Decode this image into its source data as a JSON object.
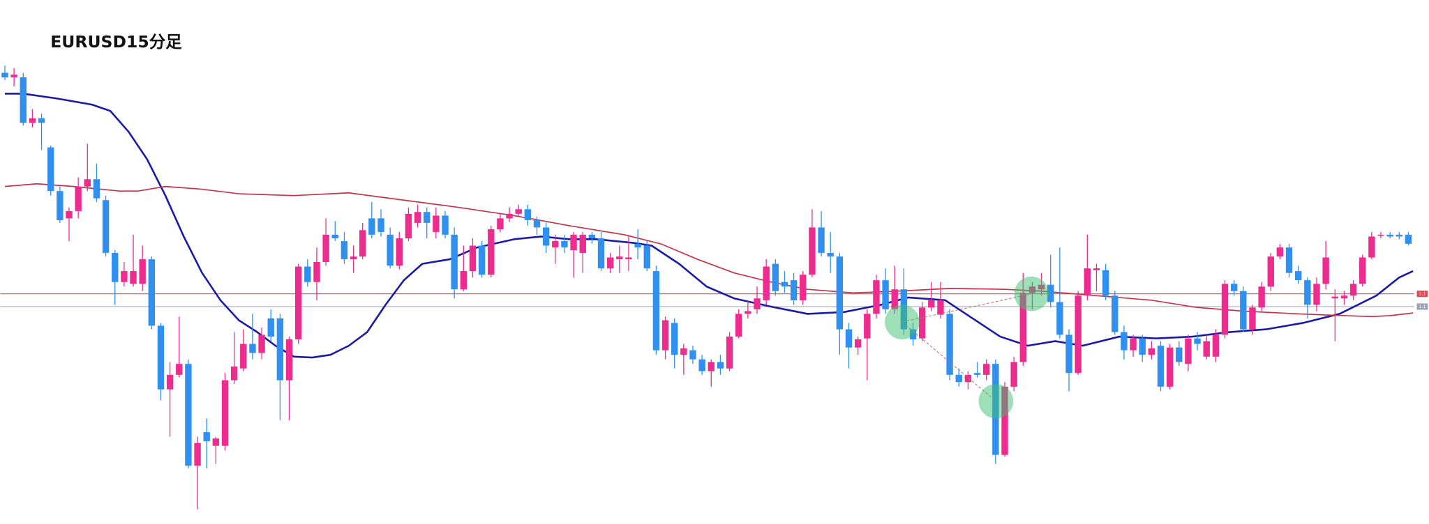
{
  "chart_data": {
    "type": "candlestick",
    "title": "EURUSD15分足",
    "up_color": "#ee2b8e",
    "down_color": "#2f90f0",
    "ylim": [
      35,
      535
    ],
    "candles": [
      [
        520,
        528,
        512,
        515
      ],
      [
        515,
        525,
        505,
        518
      ],
      [
        515,
        520,
        462,
        465
      ],
      [
        465,
        480,
        460,
        470
      ],
      [
        470,
        475,
        435,
        465
      ],
      [
        438,
        440,
        385,
        390
      ],
      [
        390,
        395,
        355,
        358
      ],
      [
        360,
        372,
        335,
        368
      ],
      [
        368,
        405,
        360,
        395
      ],
      [
        395,
        442,
        390,
        403
      ],
      [
        403,
        420,
        378,
        382
      ],
      [
        380,
        385,
        318,
        322
      ],
      [
        322,
        325,
        265,
        290
      ],
      [
        290,
        312,
        285,
        302
      ],
      [
        288,
        342,
        285,
        302
      ],
      [
        288,
        330,
        280,
        315
      ],
      [
        315,
        318,
        238,
        242
      ],
      [
        242,
        245,
        160,
        172
      ],
      [
        172,
        202,
        120,
        188
      ],
      [
        188,
        252,
        185,
        200
      ],
      [
        200,
        205,
        85,
        88
      ],
      [
        88,
        120,
        40,
        113
      ],
      [
        125,
        140,
        85,
        115
      ],
      [
        110,
        120,
        90,
        118
      ],
      [
        110,
        190,
        105,
        182
      ],
      [
        182,
        235,
        178,
        197
      ],
      [
        195,
        238,
        192,
        222
      ],
      [
        222,
        255,
        205,
        212
      ],
      [
        212,
        240,
        205,
        232
      ],
      [
        250,
        260,
        225,
        230
      ],
      [
        250,
        255,
        138,
        182
      ],
      [
        182,
        230,
        138,
        227
      ],
      [
        227,
        310,
        222,
        307
      ],
      [
        307,
        315,
        285,
        290
      ],
      [
        290,
        328,
        270,
        312
      ],
      [
        312,
        360,
        308,
        342
      ],
      [
        342,
        357,
        335,
        338
      ],
      [
        335,
        345,
        310,
        315
      ],
      [
        315,
        330,
        300,
        318
      ],
      [
        318,
        355,
        315,
        347
      ],
      [
        360,
        378,
        338,
        342
      ],
      [
        360,
        370,
        340,
        345
      ],
      [
        342,
        350,
        305,
        308
      ],
      [
        308,
        345,
        304,
        338
      ],
      [
        338,
        372,
        335,
        365
      ],
      [
        355,
        375,
        350,
        367
      ],
      [
        367,
        372,
        338,
        355
      ],
      [
        345,
        372,
        338,
        363
      ],
      [
        363,
        368,
        338,
        342
      ],
      [
        342,
        350,
        272,
        282
      ],
      [
        282,
        330,
        280,
        302
      ],
      [
        302,
        338,
        295,
        330
      ],
      [
        330,
        335,
        295,
        298
      ],
      [
        298,
        352,
        295,
        348
      ],
      [
        348,
        365,
        345,
        360
      ],
      [
        360,
        372,
        356,
        365
      ],
      [
        365,
        375,
        362,
        370
      ],
      [
        370,
        375,
        352,
        358
      ],
      [
        358,
        362,
        342,
        350
      ],
      [
        350,
        355,
        322,
        330
      ],
      [
        328,
        342,
        310,
        335
      ],
      [
        335,
        342,
        322,
        328
      ],
      [
        325,
        345,
        295,
        342
      ],
      [
        322,
        345,
        300,
        342
      ],
      [
        342,
        345,
        332,
        338
      ],
      [
        338,
        345,
        302,
        305
      ],
      [
        305,
        322,
        300,
        317
      ],
      [
        315,
        330,
        300,
        318
      ],
      [
        315,
        342,
        302,
        317
      ],
      [
        332,
        348,
        315,
        328
      ],
      [
        330,
        335,
        302,
        305
      ],
      [
        302,
        308,
        210,
        215
      ],
      [
        215,
        252,
        205,
        248
      ],
      [
        245,
        250,
        195,
        210
      ],
      [
        210,
        222,
        188,
        217
      ],
      [
        215,
        220,
        200,
        205
      ],
      [
        205,
        210,
        188,
        192
      ],
      [
        192,
        205,
        175,
        202
      ],
      [
        202,
        210,
        188,
        195
      ],
      [
        195,
        235,
        192,
        230
      ],
      [
        230,
        260,
        228,
        255
      ],
      [
        255,
        270,
        250,
        258
      ],
      [
        260,
        285,
        255,
        272
      ],
      [
        270,
        315,
        265,
        307
      ],
      [
        310,
        315,
        275,
        280
      ],
      [
        290,
        302,
        278,
        285
      ],
      [
        292,
        300,
        265,
        270
      ],
      [
        270,
        302,
        265,
        298
      ],
      [
        298,
        370,
        295,
        350
      ],
      [
        350,
        368,
        318,
        322
      ],
      [
        322,
        345,
        300,
        318
      ],
      [
        318,
        322,
        210,
        238
      ],
      [
        238,
        245,
        195,
        218
      ],
      [
        218,
        230,
        210,
        227
      ],
      [
        228,
        260,
        182,
        255
      ],
      [
        255,
        298,
        250,
        292
      ],
      [
        292,
        305,
        255,
        260
      ],
      [
        260,
        308,
        255,
        282
      ],
      [
        282,
        305,
        232,
        238
      ],
      [
        238,
        245,
        220,
        227
      ],
      [
        228,
        268,
        225,
        262
      ],
      [
        262,
        290,
        258,
        270
      ],
      [
        254,
        290,
        250,
        270
      ],
      [
        255,
        260,
        182,
        188
      ],
      [
        188,
        195,
        175,
        180
      ],
      [
        180,
        192,
        172,
        188
      ],
      [
        190,
        202,
        185,
        188
      ],
      [
        188,
        205,
        182,
        200
      ],
      [
        200,
        205,
        90,
        100
      ],
      [
        100,
        180,
        98,
        175
      ],
      [
        175,
        208,
        170,
        202
      ],
      [
        202,
        300,
        198,
        278
      ],
      [
        278,
        290,
        260,
        285
      ],
      [
        282,
        300,
        275,
        287
      ],
      [
        287,
        320,
        262,
        268
      ],
      [
        268,
        328,
        228,
        232
      ],
      [
        232,
        238,
        170,
        190
      ],
      [
        190,
        280,
        188,
        275
      ],
      [
        275,
        342,
        270,
        305
      ],
      [
        303,
        310,
        280,
        305
      ],
      [
        303,
        310,
        270,
        275
      ],
      [
        275,
        280,
        232,
        235
      ],
      [
        235,
        242,
        205,
        215
      ],
      [
        215,
        232,
        208,
        228
      ],
      [
        228,
        232,
        202,
        210
      ],
      [
        210,
        225,
        205,
        217
      ],
      [
        220,
        225,
        170,
        175
      ],
      [
        175,
        222,
        172,
        218
      ],
      [
        218,
        225,
        198,
        202
      ],
      [
        200,
        232,
        192,
        228
      ],
      [
        228,
        235,
        215,
        222
      ],
      [
        208,
        232,
        205,
        225
      ],
      [
        208,
        238,
        202,
        232
      ],
      [
        232,
        292,
        228,
        288
      ],
      [
        288,
        292,
        275,
        280
      ],
      [
        280,
        285,
        235,
        238
      ],
      [
        238,
        265,
        232,
        262
      ],
      [
        262,
        290,
        258,
        285
      ],
      [
        285,
        322,
        280,
        318
      ],
      [
        318,
        332,
        315,
        328
      ],
      [
        328,
        332,
        295,
        300
      ],
      [
        302,
        308,
        288,
        292
      ],
      [
        292,
        295,
        250,
        265
      ],
      [
        265,
        295,
        258,
        288
      ],
      [
        288,
        335,
        282,
        317
      ],
      [
        272,
        282,
        225,
        274
      ],
      [
        272,
        280,
        265,
        275
      ],
      [
        275,
        292,
        270,
        288
      ],
      [
        288,
        320,
        285,
        317
      ],
      [
        317,
        345,
        315,
        340
      ],
      [
        341,
        345,
        338,
        342
      ],
      [
        342,
        345,
        338,
        340
      ],
      [
        342,
        345,
        337,
        340
      ],
      [
        342,
        345,
        330,
        332
      ]
    ],
    "lines": [
      {
        "color": "#1a1aa8",
        "x": [
          0,
          2,
          5.5,
          9.5,
          11.5,
          13.5,
          15.5,
          17.5,
          19.5,
          21.5,
          23.5,
          25.5,
          27.5,
          29.5,
          31.5,
          33.5,
          35.5,
          37.5,
          39.5,
          41.5,
          43.5,
          45.5,
          48.5,
          51.5,
          55.5,
          58.5,
          61.5,
          64.5,
          68.5,
          70.5,
          73.5,
          76.5,
          79.5,
          83.5,
          87.5,
          91.5,
          95.5,
          98.5,
          102.5,
          105.5,
          108.5,
          111.5,
          114.5,
          117.5,
          121.5,
          125.5,
          129.5,
          133.5,
          137.5,
          141.5,
          145.5,
          149.5,
          152,
          153.5
        ],
        "values": [
          497,
          497,
          492,
          485,
          478,
          455,
          425,
          385,
          340,
          300,
          270,
          248,
          235,
          220,
          208,
          207,
          210,
          220,
          235,
          265,
          292,
          310,
          315,
          328,
          337,
          340,
          337,
          337,
          333,
          330,
          310,
          285,
          272,
          263,
          255,
          257,
          265,
          273,
          270,
          250,
          230,
          220,
          225,
          220,
          230,
          228,
          230,
          235,
          238,
          245,
          255,
          275,
          295,
          302
        ]
      },
      {
        "color": "#c8324a",
        "x": [
          0,
          3.5,
          7.5,
          12.5,
          14.5,
          17.5,
          21.5,
          25.5,
          31.5,
          37.5,
          43.5,
          49.5,
          55.5,
          61.5,
          67.5,
          71.5,
          75.5,
          79.5,
          83.5,
          87.5,
          92.5,
          97.5,
          103,
          109,
          113,
          119,
          125,
          130,
          135,
          141,
          146,
          149,
          151,
          153.5
        ],
        "values": [
          395,
          398,
          395,
          390,
          390,
          395,
          392,
          387,
          385,
          388,
          380,
          372,
          363,
          352,
          342,
          332,
          315,
          300,
          290,
          282,
          278,
          280,
          283,
          282,
          280,
          275,
          270,
          262,
          258,
          255,
          253,
          252,
          253,
          256
        ]
      }
    ],
    "levels": [
      {
        "value": 277,
        "color": "#e04a55",
        "label": "1.1"
      },
      {
        "value": 263,
        "color": "#9aa3b3",
        "label": "1.1"
      }
    ]
  }
}
